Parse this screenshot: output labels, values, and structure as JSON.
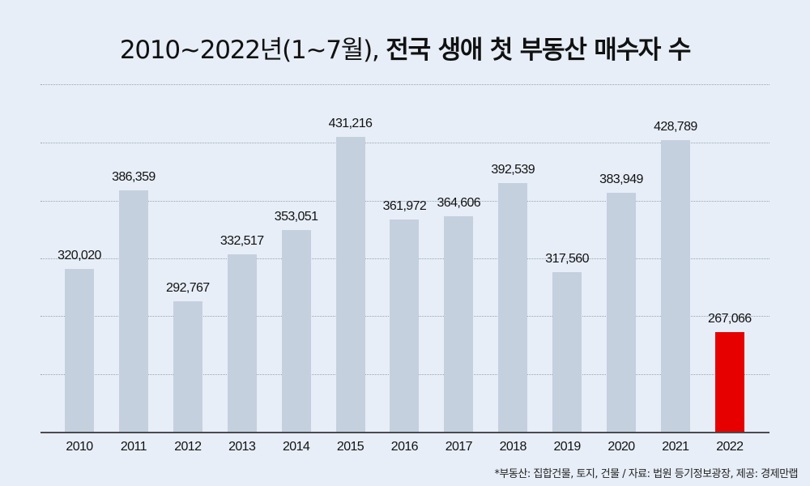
{
  "title": {
    "light": "2010~2022년(1~7월),",
    "bold": "전국 생애 첫 부동산 매수자 수"
  },
  "footnote": "*부동산: 집합건물, 토지, 건물 / 자료: 법원 등기정보광장, 제공: 경제만랩",
  "colors": {
    "background": "#e7eef8",
    "bar": "#c4d0de",
    "highlight": "#e60000",
    "axis": "#4a4a4f",
    "grid": "#9aa4b0"
  },
  "chart_data": {
    "type": "bar",
    "title": "2010~2022년(1~7월), 전국 생애 첫 부동산 매수자 수",
    "xlabel": "",
    "ylabel": "",
    "categories": [
      "2010",
      "2011",
      "2012",
      "2013",
      "2014",
      "2015",
      "2016",
      "2017",
      "2018",
      "2019",
      "2020",
      "2021",
      "2022"
    ],
    "values": [
      320020,
      386359,
      292767,
      332517,
      353051,
      431216,
      361972,
      364606,
      392539,
      317560,
      383949,
      428789,
      267066
    ],
    "value_labels": [
      "320,020",
      "386,359",
      "292,767",
      "332,517",
      "353,051",
      "431,216",
      "361,972",
      "364,606",
      "392,539",
      "317,560",
      "383,949",
      "428,789",
      "267,066"
    ],
    "highlight_index": 12,
    "grid": true,
    "gridline_count": 6,
    "ylim": [
      182600,
      475000
    ],
    "legend": null,
    "annotations": [
      "*부동산: 집합건물, 토지, 건물 / 자료: 법원 등기정보광장, 제공: 경제만랩"
    ]
  }
}
